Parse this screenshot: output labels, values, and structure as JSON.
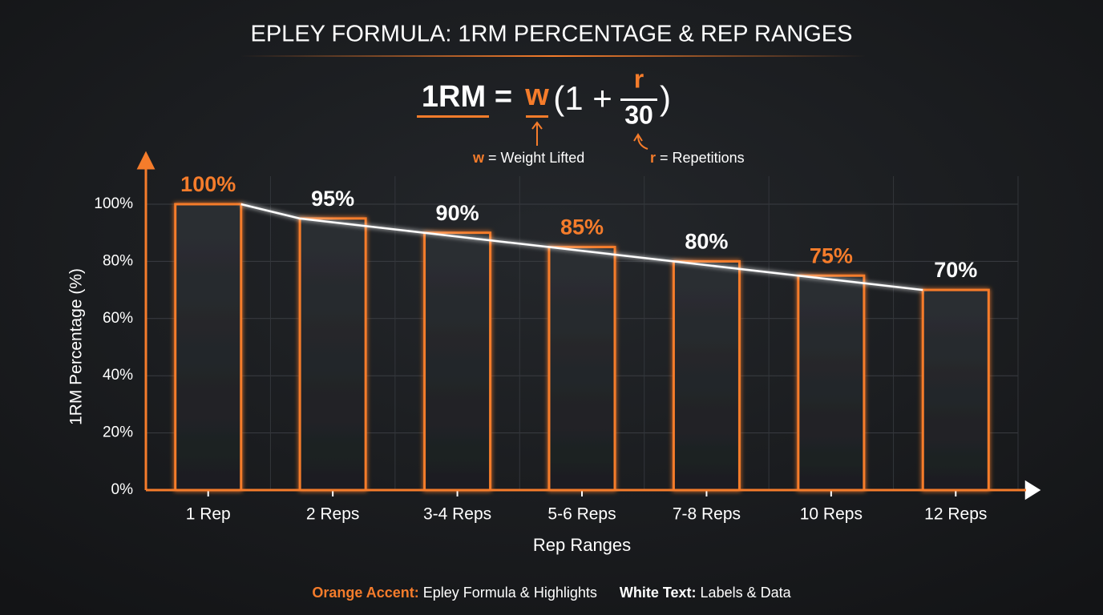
{
  "chart_data": {
    "type": "bar",
    "title": "EPLEY FORMULA: 1RM PERCENTAGE & REP RANGES",
    "formula": {
      "lhs": "1RM",
      "equals": "=",
      "weight": "w",
      "open": "(1 +",
      "numerator": "r",
      "denominator": "30",
      "close": ")"
    },
    "annotations": [
      {
        "symbol": "w",
        "text": "= Weight Lifted"
      },
      {
        "symbol": "r",
        "text": "= Repetitions"
      }
    ],
    "categories": [
      "1 Rep",
      "2 Reps",
      "3-4 Reps",
      "5-6 Reps",
      "7-8 Reps",
      "10 Reps",
      "12 Reps"
    ],
    "values": [
      100,
      95,
      90,
      85,
      80,
      75,
      70
    ],
    "value_labels": [
      "100%",
      "95%",
      "90%",
      "85%",
      "80%",
      "75%",
      "70%"
    ],
    "value_label_colors": [
      "#f57c2b",
      "#ffffff",
      "#ffffff",
      "#f57c2b",
      "#ffffff",
      "#f57c2b",
      "#ffffff"
    ],
    "color": "#f57c2b",
    "xlabel": "Rep Ranges",
    "ylabel": "1RM Percentage (%)",
    "ylim": [
      0,
      100
    ],
    "yticks": [
      {
        "value": 0,
        "label": "0%"
      },
      {
        "value": 20,
        "label": "20%"
      },
      {
        "value": 40,
        "label": "40%"
      },
      {
        "value": 60,
        "label": "60%"
      },
      {
        "value": 80,
        "label": "80%"
      },
      {
        "value": 100,
        "label": "100%"
      }
    ],
    "grid": true,
    "legend": [
      {
        "key": "Orange Accent:",
        "text": "Epley Formula & Highlights"
      },
      {
        "key": "White Text:",
        "text": "Labels & Data"
      }
    ]
  }
}
